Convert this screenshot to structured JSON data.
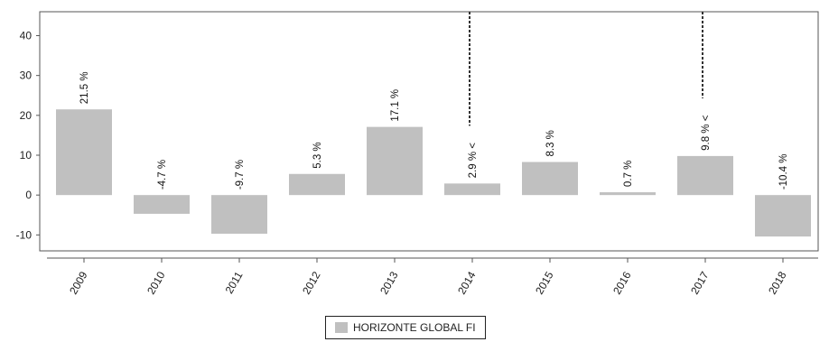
{
  "chart_data": {
    "type": "bar",
    "categories": [
      "2009",
      "2010",
      "2011",
      "2012",
      "2013",
      "2014",
      "2015",
      "2016",
      "2017",
      "2018"
    ],
    "series": [
      {
        "name": "HORIZONTE GLOBAL FI",
        "values": [
          21.5,
          -4.7,
          -9.7,
          5.3,
          17.1,
          2.9,
          8.3,
          0.7,
          9.8,
          -10.4
        ],
        "labels": [
          "21.5 %",
          "-4.7 %",
          "-9.7 %",
          "5.3 %",
          "17.1 %",
          "2.9 % <",
          "8.3 %",
          "0.7 %",
          "9.8 % <",
          "-10.4 %"
        ],
        "color": "#c0c0c0"
      }
    ],
    "yticks": [
      "40",
      "30",
      "20",
      "10",
      "0",
      "-10"
    ],
    "ylim": [
      -14,
      46
    ],
    "grid": false,
    "legend": "bottom-center",
    "markers": [
      {
        "category": "2014",
        "style": "dashed-vertical-line"
      },
      {
        "category": "2017",
        "style": "dashed-vertical-line"
      }
    ]
  }
}
